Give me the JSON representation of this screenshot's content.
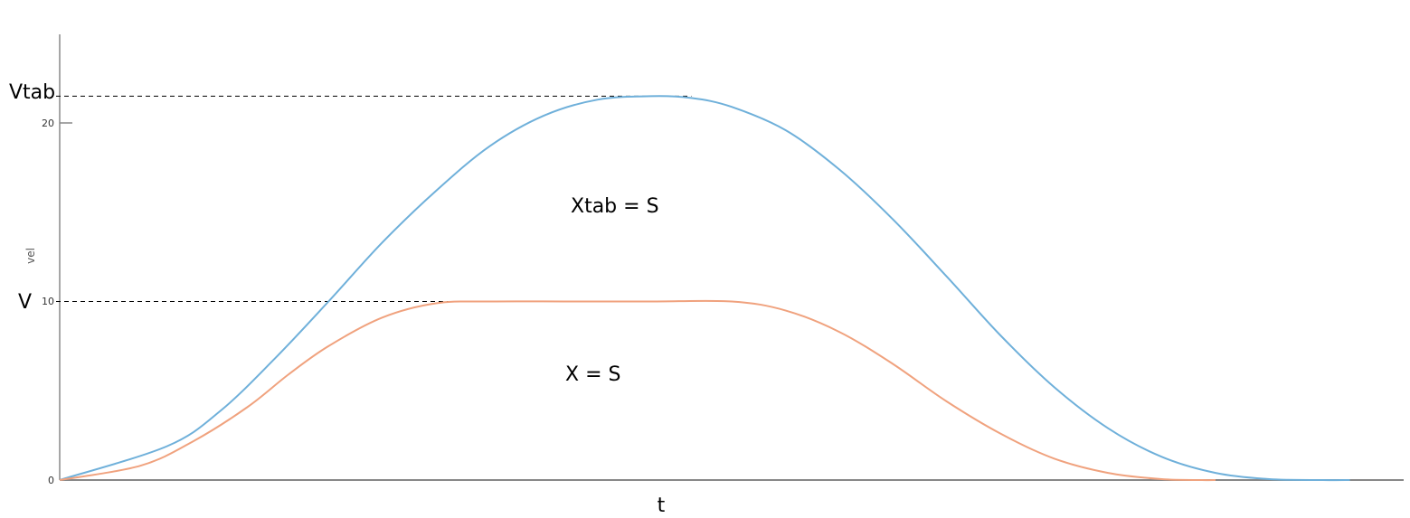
{
  "chart_data": {
    "type": "line",
    "title": "",
    "xlabel": "t",
    "ylabel": "vel",
    "ylim": [
      0,
      25
    ],
    "xlim": [
      0,
      100
    ],
    "yticks": [
      "0",
      "10",
      "20"
    ],
    "grid": false,
    "series": [
      {
        "color": "#6FB0DA",
        "x": [
          0,
          8,
          12,
          16,
          20,
          24,
          28,
          32,
          36,
          40,
          44,
          47,
          50,
          54,
          58,
          62,
          66,
          70,
          74,
          78,
          82,
          86,
          90,
          94,
          96
        ],
        "y": [
          0,
          1.9,
          3.9,
          6.8,
          10.0,
          13.3,
          16.2,
          18.7,
          20.4,
          21.3,
          21.5,
          21.4,
          20.9,
          19.6,
          17.4,
          14.6,
          11.4,
          8.1,
          5.2,
          2.9,
          1.3,
          0.4,
          0.05,
          0,
          0
        ]
      },
      {
        "color": "#F0A27E",
        "x": [
          0,
          6,
          10,
          14,
          17,
          20,
          24,
          28,
          32,
          38,
          44,
          50,
          54,
          58,
          62,
          66,
          70,
          74,
          78,
          82,
          85,
          86
        ],
        "y": [
          0,
          0.8,
          2.2,
          4.1,
          5.9,
          7.5,
          9.1,
          9.9,
          10.0,
          10.0,
          10.0,
          10.0,
          9.5,
          8.3,
          6.5,
          4.4,
          2.6,
          1.2,
          0.4,
          0.05,
          0,
          0
        ]
      }
    ],
    "reference_lines": [
      {
        "y": 21.5,
        "label": "Vtab"
      },
      {
        "y": 10,
        "label": "V"
      }
    ],
    "annotations": [
      {
        "text": "Xtab = S",
        "x": 41.5,
        "y": 15.4
      },
      {
        "text": "X = S",
        "x": 39.5,
        "y": 5.9
      }
    ]
  }
}
